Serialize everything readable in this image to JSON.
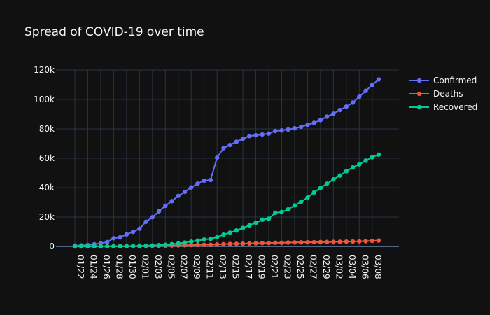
{
  "chart_data": {
    "type": "line",
    "title": "Spread of COVID-19 over time",
    "xlabel": "",
    "ylabel": "",
    "ylim": [
      0,
      120000
    ],
    "y_ticks": [
      0,
      20000,
      40000,
      60000,
      80000,
      100000,
      120000
    ],
    "y_tick_labels": [
      "0",
      "20k",
      "40k",
      "60k",
      "80k",
      "100k",
      "120k"
    ],
    "grid": true,
    "legend_position": "top-right",
    "x": [
      "01/22",
      "01/23",
      "01/24",
      "01/25",
      "01/26",
      "01/27",
      "01/28",
      "01/29",
      "01/30",
      "01/31",
      "02/01",
      "02/02",
      "02/03",
      "02/04",
      "02/05",
      "02/06",
      "02/07",
      "02/08",
      "02/09",
      "02/10",
      "02/11",
      "02/12",
      "02/13",
      "02/14",
      "02/15",
      "02/16",
      "02/17",
      "02/18",
      "02/19",
      "02/20",
      "02/21",
      "02/22",
      "02/23",
      "02/24",
      "02/25",
      "02/26",
      "02/27",
      "02/28",
      "02/29",
      "03/01",
      "03/02",
      "03/03",
      "03/04",
      "03/05",
      "03/06",
      "03/07",
      "03/08",
      "03/09"
    ],
    "x_tick_labels": [
      "01/22",
      "01/24",
      "01/26",
      "01/28",
      "01/30",
      "02/01",
      "02/03",
      "02/05",
      "02/07",
      "02/09",
      "02/11",
      "02/13",
      "02/15",
      "02/17",
      "02/19",
      "02/21",
      "02/23",
      "02/25",
      "02/27",
      "02/29",
      "03/02",
      "03/04",
      "03/06",
      "03/08"
    ],
    "series": [
      {
        "name": "Confirmed",
        "color": "#636efa",
        "values": [
          555,
          654,
          941,
          1434,
          2118,
          2927,
          5578,
          6166,
          8234,
          9927,
          12038,
          16787,
          19881,
          23892,
          27635,
          30794,
          34391,
          37120,
          40150,
          42762,
          44802,
          45221,
          60368,
          66885,
          69030,
          71224,
          73258,
          75136,
          75639,
          76197,
          76819,
          78572,
          78958,
          79561,
          80406,
          81388,
          82746,
          84112,
          86011,
          88369,
          90306,
          92840,
          95120,
          97886,
          101801,
          105847,
          109821,
          113590
        ]
      },
      {
        "name": "Deaths",
        "color": "#ef553b",
        "values": [
          17,
          18,
          26,
          42,
          56,
          82,
          131,
          133,
          171,
          213,
          259,
          362,
          426,
          492,
          564,
          634,
          719,
          806,
          906,
          1013,
          1113,
          1118,
          1371,
          1523,
          1666,
          1770,
          1868,
          2007,
          2122,
          2247,
          2251,
          2458,
          2469,
          2629,
          2708,
          2770,
          2814,
          2872,
          2941,
          2996,
          3085,
          3160,
          3254,
          3348,
          3460,
          3558,
          3802,
          3988
        ]
      },
      {
        "name": "Recovered",
        "color": "#00cc96",
        "values": [
          28,
          30,
          36,
          39,
          52,
          61,
          107,
          126,
          143,
          222,
          284,
          472,
          623,
          852,
          1124,
          1487,
          2011,
          2616,
          3244,
          3946,
          4683,
          5150,
          6295,
          8058,
          9395,
          10865,
          12583,
          14352,
          16121,
          18177,
          18890,
          22886,
          23394,
          25227,
          27905,
          30384,
          33277,
          36711,
          39782,
          42716,
          45602,
          48229,
          51170,
          53796,
          55865,
          58358,
          60694,
          62494
        ]
      }
    ]
  }
}
